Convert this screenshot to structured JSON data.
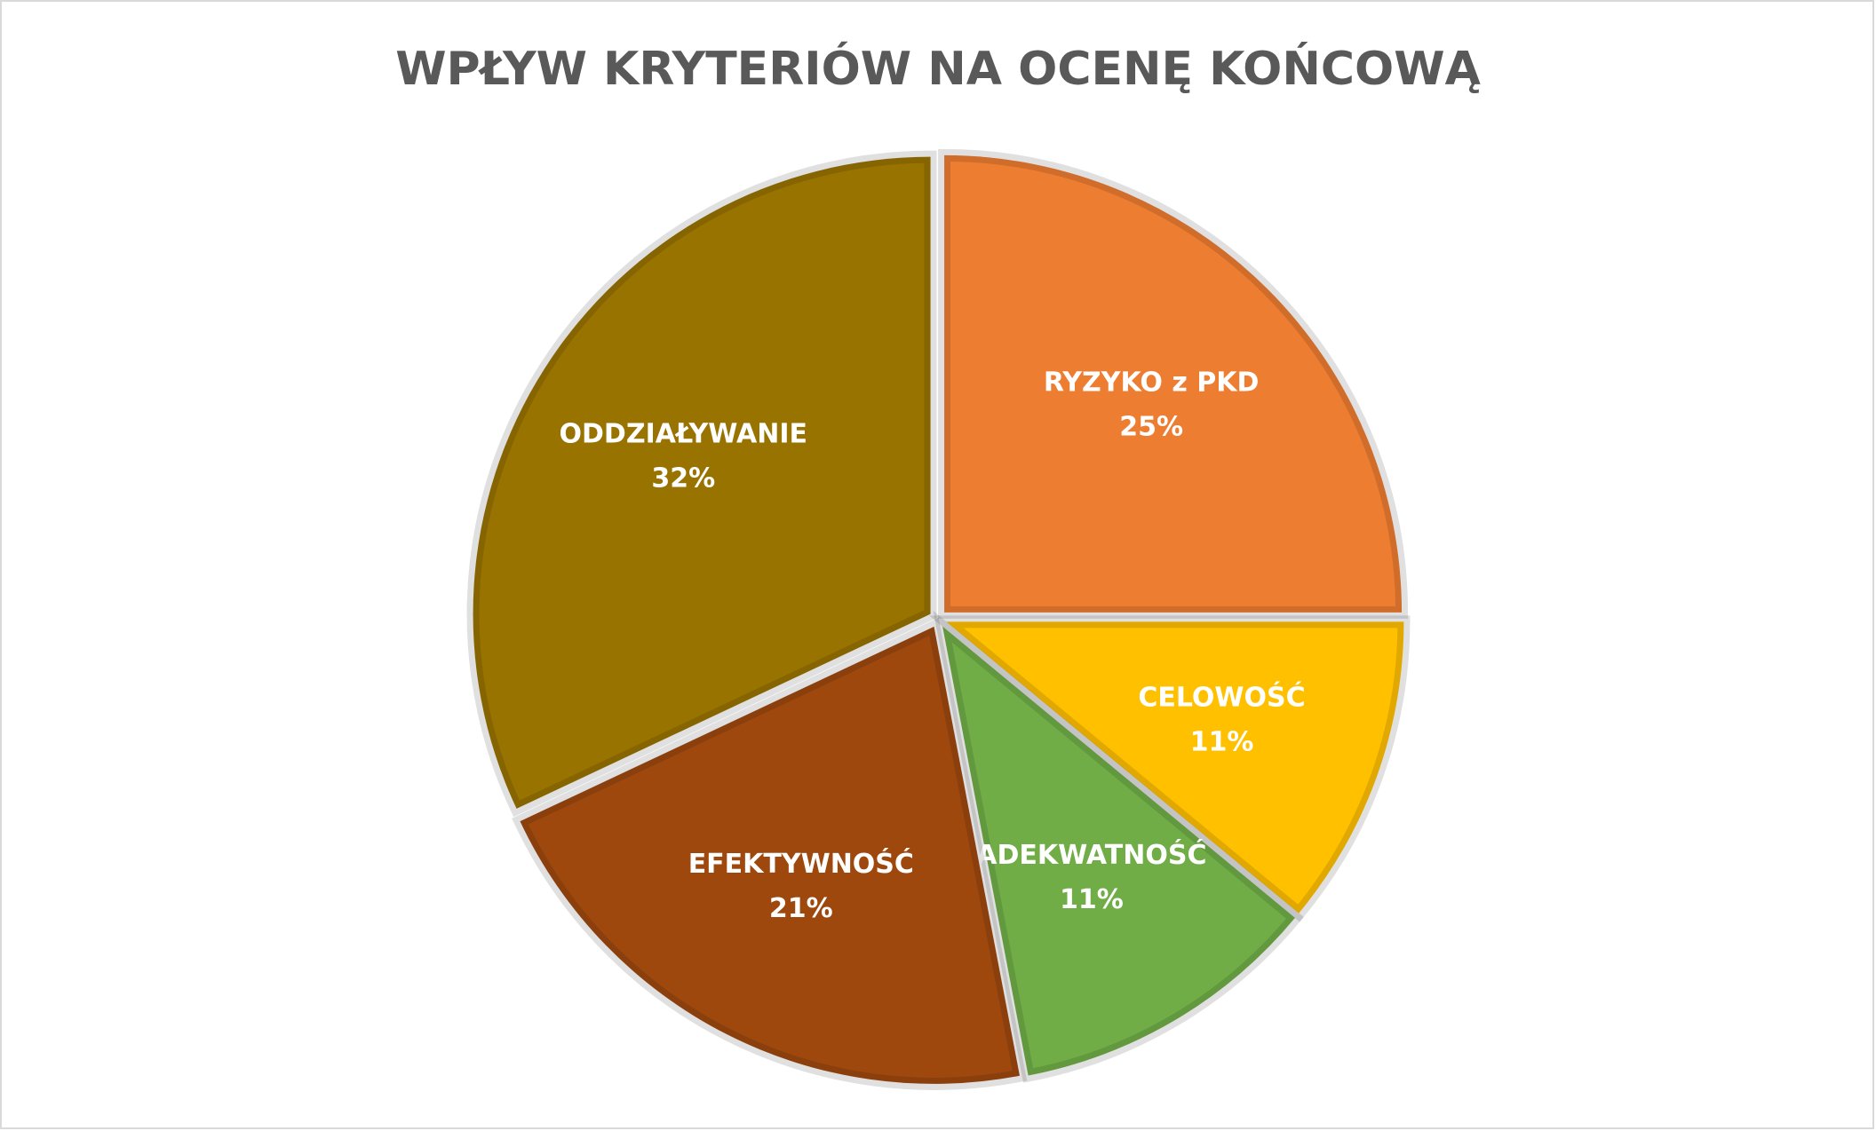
{
  "chart_data": {
    "type": "pie",
    "title": "WPŁYW KRYTERIÓW NA OCENĘ KOŃCOWĄ",
    "categories": [
      "RYZYKO z PKD",
      "CELOWOŚĆ",
      "ADEKWATNOŚĆ",
      "EFEKTYWNOŚĆ",
      "ODDZIAŁYWANIE"
    ],
    "values": [
      25,
      11,
      11,
      21,
      32
    ],
    "value_labels": [
      "25%",
      "11%",
      "11%",
      "21%",
      "32%"
    ],
    "colors": [
      "#ED7D31",
      "#FFC000",
      "#70AD47",
      "#9E480E",
      "#997300"
    ]
  }
}
